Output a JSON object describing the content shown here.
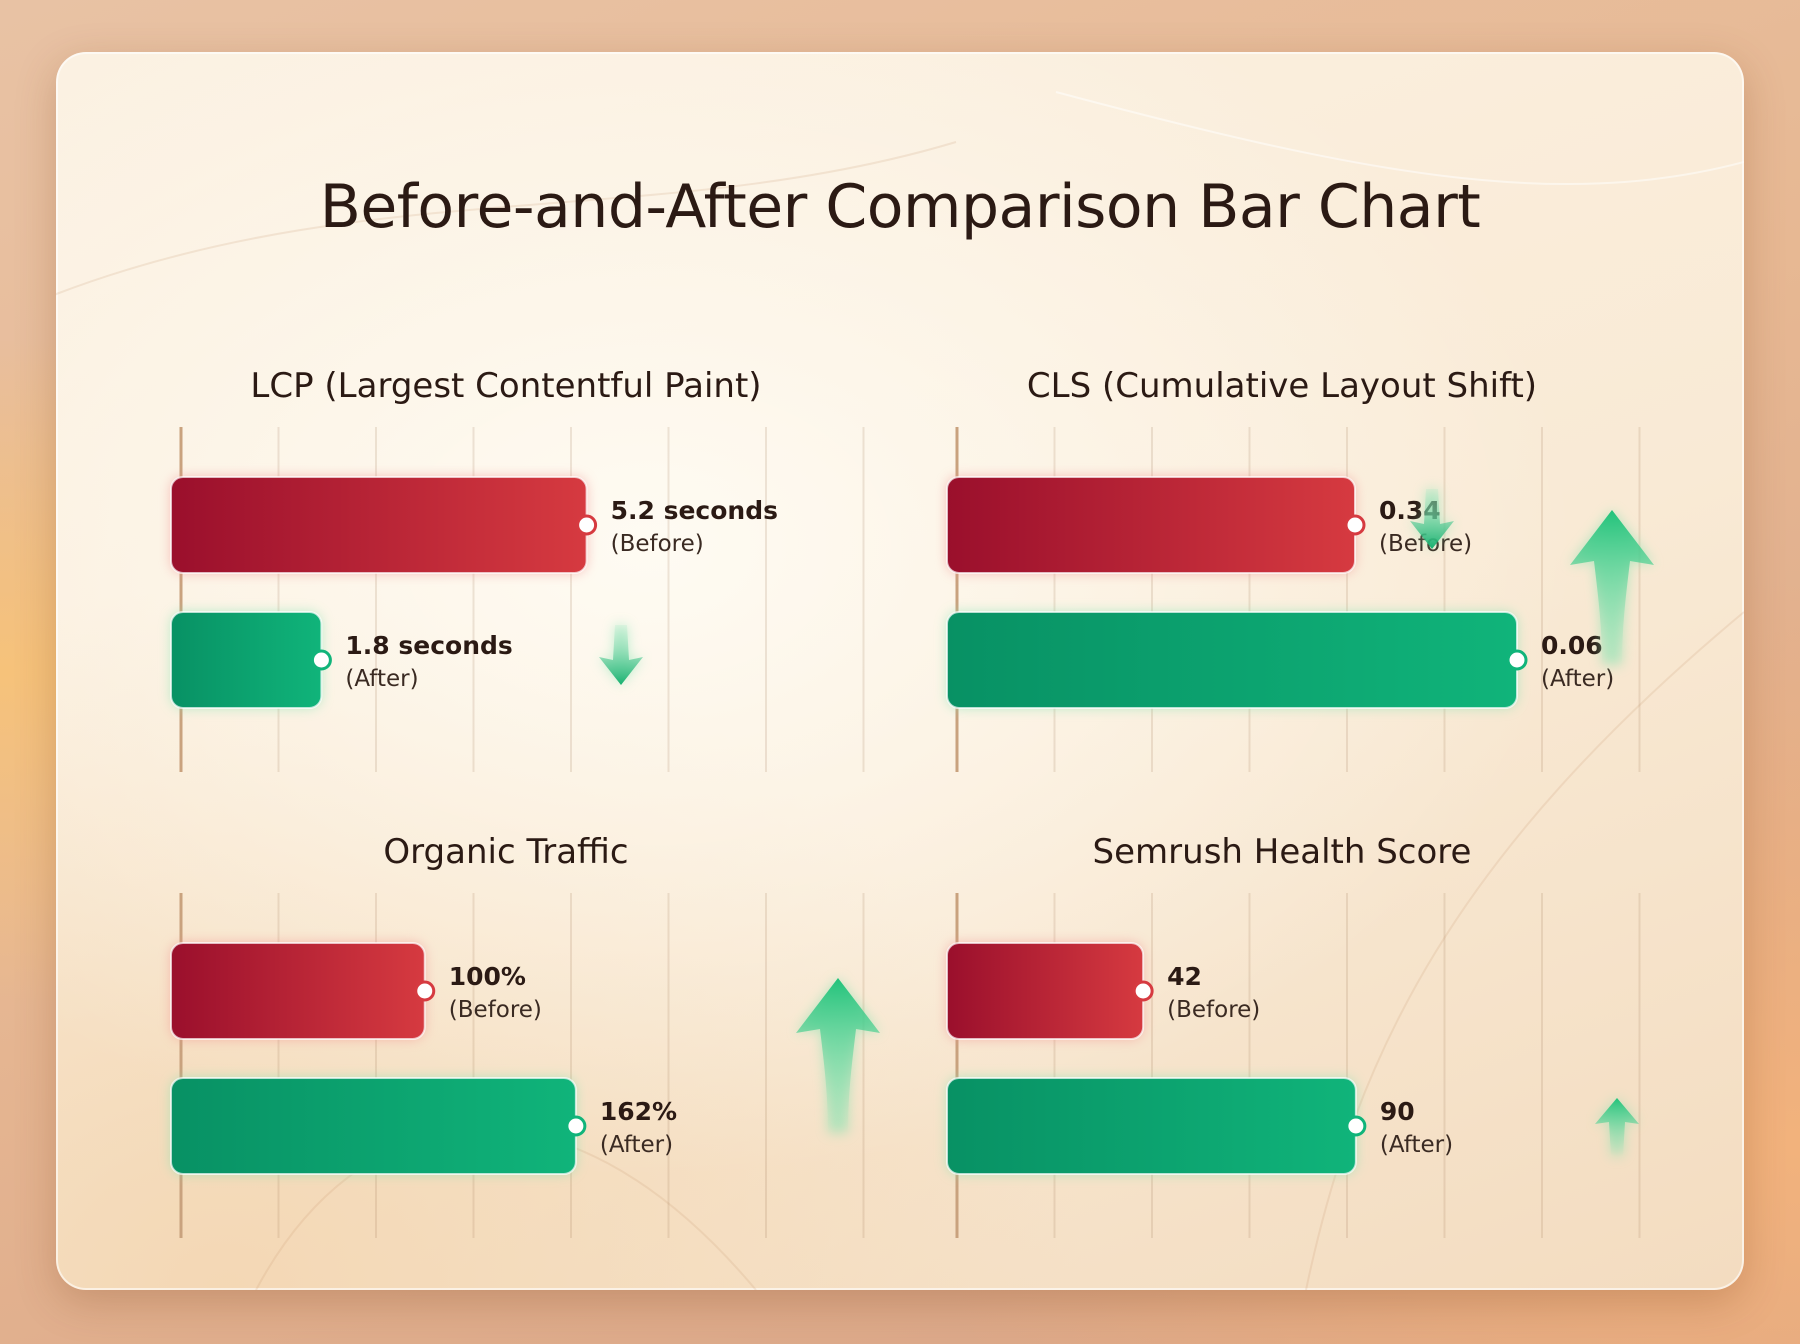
{
  "title": "Before-and-After Comparison Bar Chart",
  "colors": {
    "before": "#d63a40",
    "before_dark": "#9a0f2c",
    "after": "#10b47a",
    "after_dark": "#089164",
    "arrow": "#22c07a"
  },
  "chart_data": [
    {
      "type": "bar",
      "title": "LCP (Largest Contentful Paint)",
      "categories": [
        "Before",
        "After"
      ],
      "values": [
        5.2,
        1.8
      ],
      "value_labels": [
        "5.2 seconds",
        "1.8 seconds"
      ],
      "sub_labels": [
        "(Before)",
        "(After)"
      ],
      "xlim": [
        0,
        7.5
      ],
      "grid": true,
      "trend_icon": "arrow-down-icon"
    },
    {
      "type": "bar",
      "title": "CLS (Cumulative Layout Shift)",
      "categories": [
        "Before",
        "After"
      ],
      "values": [
        0.34,
        0.06
      ],
      "value_labels": [
        "0.34",
        "0.06"
      ],
      "sub_labels": [
        "(Before)",
        "(After)"
      ],
      "grid": true,
      "trend_icon": "arrow-up-icon"
    },
    {
      "type": "bar",
      "title": "Organic Traffic",
      "categories": [
        "Before",
        "After"
      ],
      "values": [
        100,
        162
      ],
      "value_labels": [
        "100%",
        "162%"
      ],
      "sub_labels": [
        "(Before)",
        "(After)"
      ],
      "xlim": [
        0,
        240
      ],
      "grid": true,
      "trend_icon": "arrow-up-icon"
    },
    {
      "type": "bar",
      "title": "Semrush Health Score",
      "categories": [
        "Before",
        "After"
      ],
      "values": [
        42,
        90
      ],
      "value_labels": [
        "42",
        "90"
      ],
      "sub_labels": [
        "(Before)",
        "(After)"
      ],
      "xlim": [
        0,
        132
      ],
      "grid": true,
      "trend_icon": "arrow-up-icon"
    }
  ]
}
